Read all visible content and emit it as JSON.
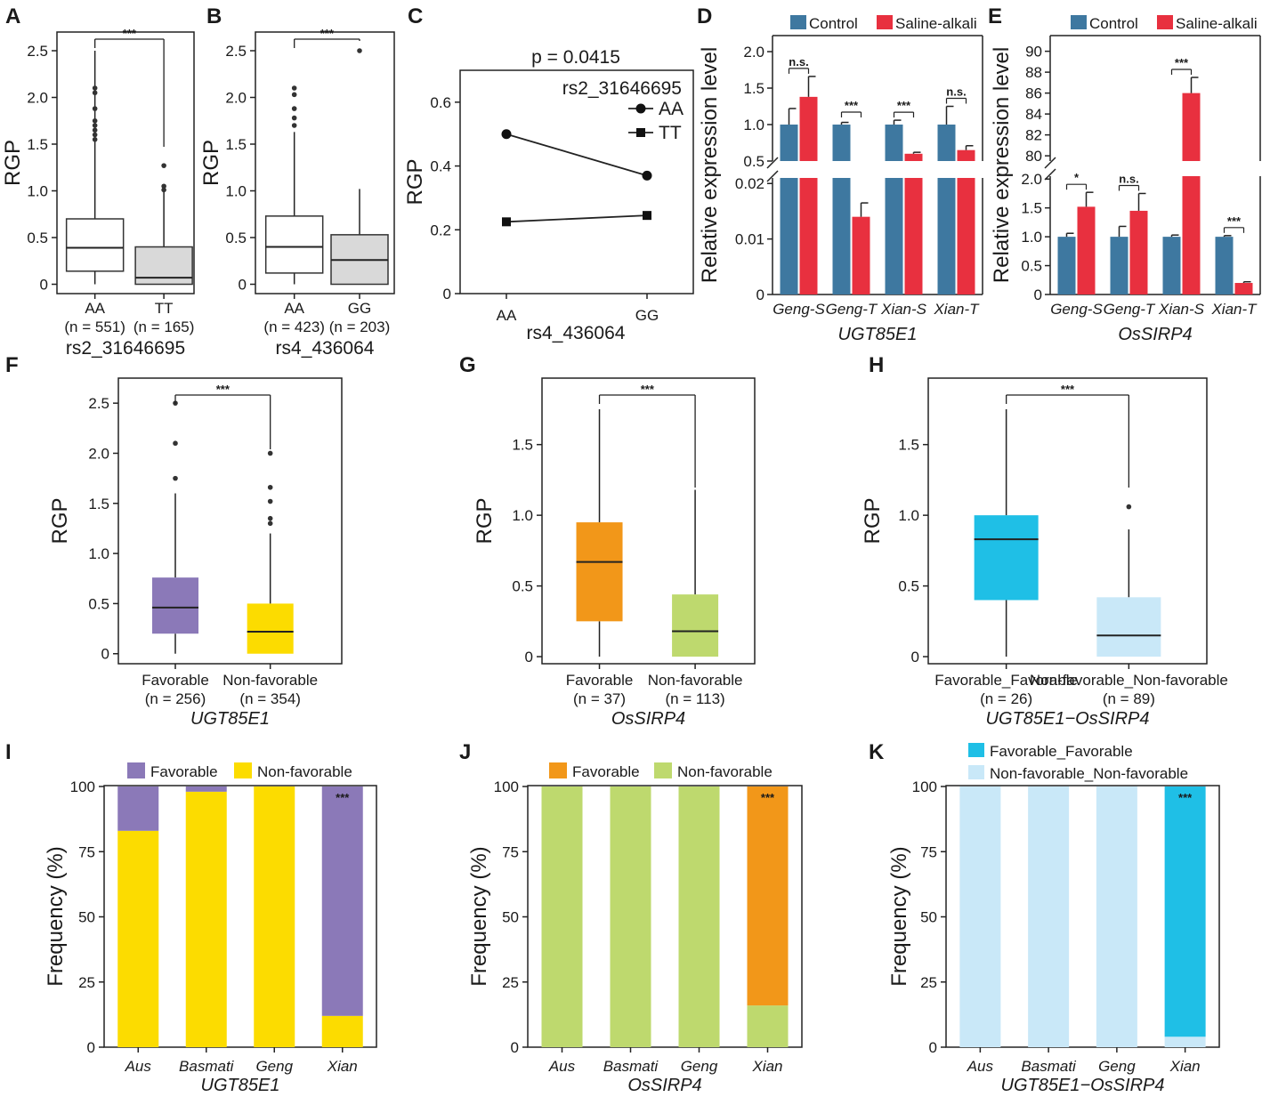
{
  "chart_data": {
    "A": {
      "type": "box",
      "label": "A",
      "ylabel": "RGP",
      "xlabel": "rs2_31646695",
      "ylim": [
        -0.1,
        2.7
      ],
      "yticks": [
        "0",
        "0.5",
        "1.0",
        "1.5",
        "2.0",
        "2.5"
      ],
      "groups": [
        {
          "name": "AA",
          "n": "(n = 551)",
          "q1": 0.14,
          "median": 0.39,
          "q3": 0.7,
          "wlo": 0,
          "whi": 2.5,
          "outliers": [
            2.1,
            2.05,
            1.88,
            1.75,
            1.7,
            1.65,
            1.6,
            1.55
          ]
        },
        {
          "name": "TT",
          "n": "(n = 165)",
          "q1": 0,
          "median": 0.07,
          "q3": 0.4,
          "wlo": 0,
          "whi": 1.0,
          "outliers": [
            1.27,
            1.05,
            1.01
          ]
        }
      ],
      "sig": "***"
    },
    "B": {
      "type": "box",
      "label": "B",
      "ylabel": "RGP",
      "xlabel": "rs4_436064",
      "ylim": [
        -0.1,
        2.7
      ],
      "yticks": [
        "0",
        "0.5",
        "1.0",
        "1.5",
        "2.0",
        "2.5"
      ],
      "groups": [
        {
          "name": "AA",
          "n": "(n = 423)",
          "q1": 0.12,
          "median": 0.4,
          "q3": 0.73,
          "wlo": 0,
          "whi": 1.63,
          "outliers": [
            2.1,
            2.03,
            1.88,
            1.78,
            1.7
          ]
        },
        {
          "name": "GG",
          "n": "(n = 203)",
          "q1": 0,
          "median": 0.26,
          "q3": 0.53,
          "wlo": 0,
          "whi": 1.02,
          "outliers": [
            2.5
          ]
        }
      ],
      "sig": "***"
    },
    "C": {
      "type": "line",
      "label": "C",
      "ylabel": "RGP",
      "xlabel": "rs4_436064",
      "title": "p = 0.0415",
      "legend_title": "rs2_31646695",
      "categories": [
        "AA",
        "GG"
      ],
      "ylim": [
        0,
        0.7
      ],
      "yticks": [
        "0",
        "0.2",
        "0.4",
        "0.6"
      ],
      "series": [
        {
          "name": "AA",
          "values": [
            0.5,
            0.37
          ]
        },
        {
          "name": "TT",
          "values": [
            0.225,
            0.245
          ]
        }
      ]
    },
    "D": {
      "type": "bar",
      "label": "D",
      "gene": "UGT85E1",
      "ylabel": "Relative expression level",
      "categories": [
        "Geng-S",
        "Geng-T",
        "Xian-S",
        "Xian-T"
      ],
      "legend": [
        "Control",
        "Saline-alkali"
      ],
      "upper_ticks": [
        "0.5",
        "1.0",
        "1.5",
        "2.0"
      ],
      "lower_ticks": [
        "0",
        "0.01",
        "0.02"
      ],
      "control": [
        1.0,
        1.0,
        1.0,
        1.0
      ],
      "control_err": [
        0.22,
        0.03,
        0.06,
        0.25
      ],
      "saline": [
        1.38,
        0.014,
        0.6,
        0.65
      ],
      "saline_err": [
        0.28,
        0.0025,
        0.02,
        0.06
      ],
      "sig": [
        "n.s.",
        "***",
        "***",
        "n.s."
      ]
    },
    "E": {
      "type": "bar",
      "label": "E",
      "gene": "OsSIRP4",
      "ylabel": "Relative expression level",
      "categories": [
        "Geng-S",
        "Geng-T",
        "Xian-S",
        "Xian-T"
      ],
      "legend": [
        "Control",
        "Saline-alkali"
      ],
      "upper_ticks": [
        "80",
        "82",
        "84",
        "86",
        "88",
        "90"
      ],
      "lower_ticks": [
        "0",
        "0.5",
        "1.0",
        "1.5",
        "2.0"
      ],
      "control": [
        1.0,
        1.0,
        1.0,
        1.0
      ],
      "control_err": [
        0.06,
        0.18,
        0.03,
        0.02
      ],
      "saline": [
        1.52,
        1.45,
        86.0,
        0.2
      ],
      "saline_err": [
        0.25,
        0.3,
        1.5,
        0.02
      ],
      "sig": [
        "*",
        "n.s.",
        "***",
        "***"
      ]
    },
    "F": {
      "type": "box",
      "label": "F",
      "ylabel": "RGP",
      "gene": "UGT85E1",
      "ylim": [
        -0.1,
        2.75
      ],
      "yticks": [
        "0",
        "0.5",
        "1.0",
        "1.5",
        "2.0",
        "2.5"
      ],
      "groups": [
        {
          "name": "Favorable",
          "n": "(n = 256)",
          "q1": 0.2,
          "median": 0.46,
          "q3": 0.76,
          "wlo": 0,
          "whi": 1.6,
          "outliers": [
            2.5,
            2.1,
            1.75
          ]
        },
        {
          "name": "Non-favorable",
          "n": "(n = 354)",
          "q1": 0,
          "median": 0.22,
          "q3": 0.5,
          "wlo": 0,
          "whi": 1.2,
          "outliers": [
            2.0,
            1.66,
            1.52,
            1.35,
            1.3
          ]
        }
      ],
      "sig": "***"
    },
    "G": {
      "type": "box",
      "label": "G",
      "ylabel": "RGP",
      "gene": "OsSIRP4",
      "ylim": [
        -0.05,
        1.97
      ],
      "yticks": [
        "0",
        "0.5",
        "1.0",
        "1.5"
      ],
      "groups": [
        {
          "name": "Favorable",
          "n": "(n = 37)",
          "q1": 0.25,
          "median": 0.67,
          "q3": 0.95,
          "wlo": 0,
          "whi": 1.75,
          "outliers": []
        },
        {
          "name": "Non-favorable",
          "n": "(n = 113)",
          "q1": 0,
          "median": 0.18,
          "q3": 0.44,
          "wlo": 0,
          "whi": 1.18,
          "outliers": []
        }
      ],
      "sig": "***"
    },
    "H": {
      "type": "box",
      "label": "H",
      "ylabel": "RGP",
      "gene": "UGT85E1−OsSIRP4",
      "ylim": [
        -0.05,
        1.97
      ],
      "yticks": [
        "0",
        "0.5",
        "1.0",
        "1.5"
      ],
      "groups": [
        {
          "name": "Favorable_Favorable",
          "n": "(n = 26)",
          "q1": 0.4,
          "median": 0.83,
          "q3": 1.0,
          "wlo": 0,
          "whi": 1.75,
          "outliers": []
        },
        {
          "name": "Non-favorable_Non-favorable",
          "n": "(n = 89)",
          "q1": 0,
          "median": 0.15,
          "q3": 0.42,
          "wlo": 0,
          "whi": 0.9,
          "outliers": [
            1.06
          ]
        }
      ],
      "sig": "***"
    },
    "I": {
      "type": "stacked_bar",
      "label": "I",
      "gene": "UGT85E1",
      "ylabel": "Frequency (%)",
      "categories": [
        "Aus",
        "Basmati",
        "Geng",
        "Xian"
      ],
      "legend": [
        "Favorable",
        "Non-favorable"
      ],
      "yticks": [
        "0",
        "25",
        "50",
        "75",
        "100"
      ],
      "favorable": [
        17,
        2,
        0,
        88
      ],
      "nonfavorable": [
        83,
        98,
        100,
        12
      ],
      "sig": "***"
    },
    "J": {
      "type": "stacked_bar",
      "label": "J",
      "gene": "OsSIRP4",
      "ylabel": "Frequency (%)",
      "categories": [
        "Aus",
        "Basmati",
        "Geng",
        "Xian"
      ],
      "legend": [
        "Favorable",
        "Non-favorable"
      ],
      "yticks": [
        "0",
        "25",
        "50",
        "75",
        "100"
      ],
      "favorable": [
        0,
        0,
        0,
        84
      ],
      "nonfavorable": [
        100,
        100,
        100,
        16
      ],
      "sig": "***"
    },
    "K": {
      "type": "stacked_bar",
      "label": "K",
      "gene": "UGT85E1−OsSIRP4",
      "ylabel": "Frequency (%)",
      "categories": [
        "Aus",
        "Basmati",
        "Geng",
        "Xian"
      ],
      "legend": [
        "Favorable_Favorable",
        "Non-favorable_Non-favorable"
      ],
      "yticks": [
        "0",
        "25",
        "50",
        "75",
        "100"
      ],
      "favorable": [
        0,
        0,
        0,
        96
      ],
      "nonfavorable": [
        100,
        100,
        100,
        4
      ],
      "sig": "***"
    }
  },
  "colors": {
    "control": "#3e78a0",
    "saline": "#e8303f",
    "grey_box": "#d9d9d9",
    "ugt_fav": "#8b79b8",
    "ugt_non": "#fcdc00",
    "sirp_fav": "#f29719",
    "sirp_non": "#bed96e",
    "comb_fav": "#1fbfe6",
    "comb_non": "#c9e8f8"
  }
}
